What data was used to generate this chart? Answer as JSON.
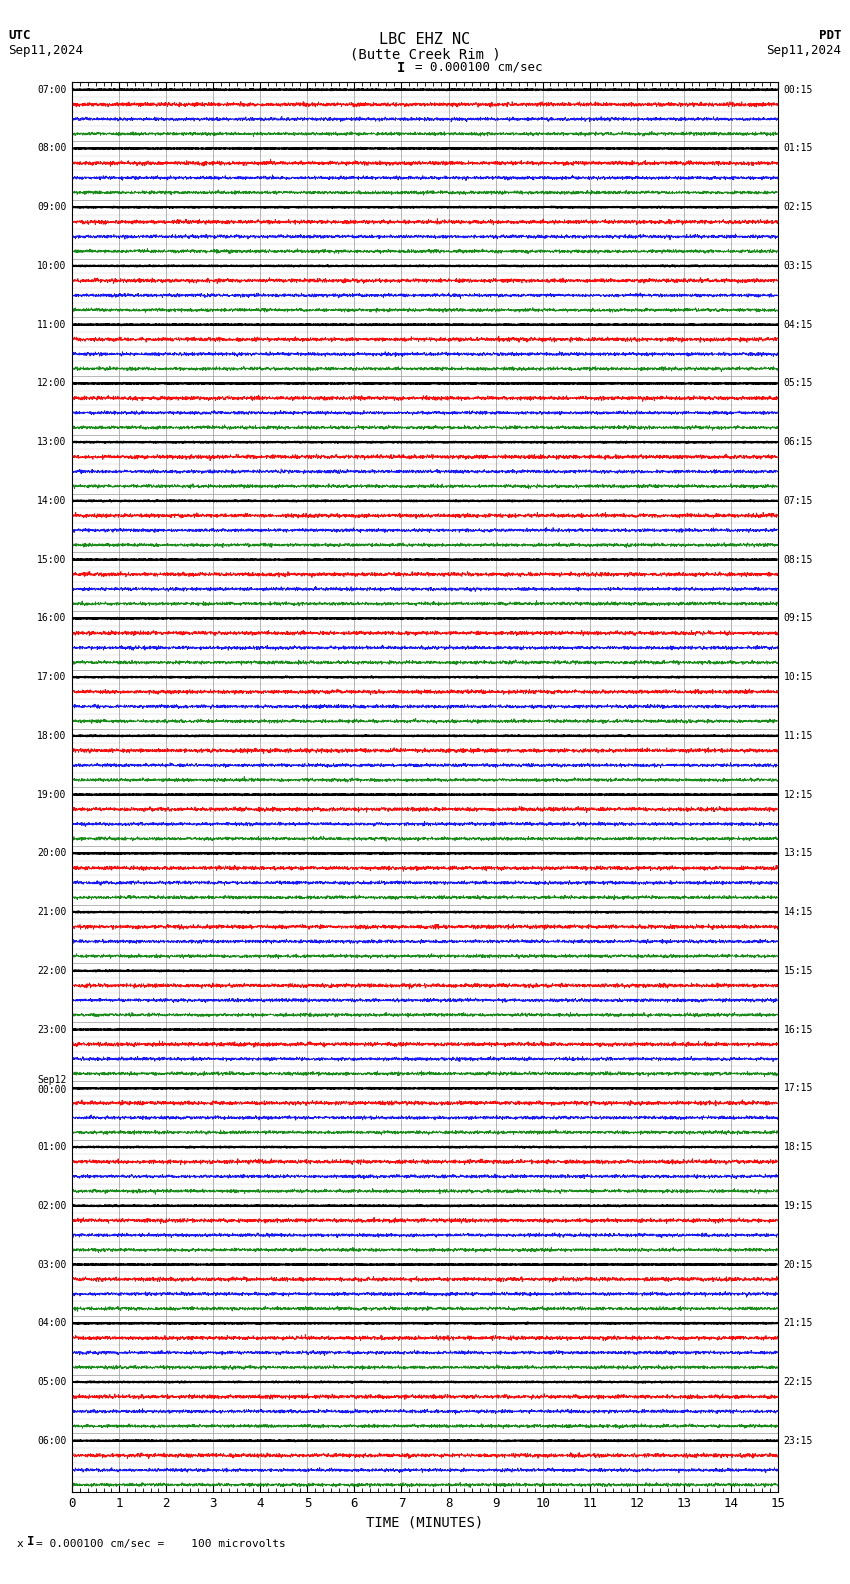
{
  "title_line1": "LBC EHZ NC",
  "title_line2": "(Butte Creek Rim )",
  "scale_label": "= 0.000100 cm/sec",
  "left_label_top": "UTC",
  "left_label_date": "Sep11,2024",
  "right_label_top": "PDT",
  "right_label_date": "Sep11,2024",
  "bottom_label": "TIME (MINUTES)",
  "footer_label": "= 0.000100 cm/sec =    100 microvolts",
  "xlabel_ticks": [
    0,
    1,
    2,
    3,
    4,
    5,
    6,
    7,
    8,
    9,
    10,
    11,
    12,
    13,
    14,
    15
  ],
  "utc_times": [
    "07:00",
    "08:00",
    "09:00",
    "10:00",
    "11:00",
    "12:00",
    "13:00",
    "14:00",
    "15:00",
    "16:00",
    "17:00",
    "18:00",
    "19:00",
    "20:00",
    "21:00",
    "22:00",
    "23:00",
    "Sep12\n00:00",
    "01:00",
    "02:00",
    "03:00",
    "04:00",
    "05:00",
    "06:00",
    "",
    "",
    "",
    "",
    "",
    "",
    "",
    "",
    "",
    "",
    "",
    "",
    "",
    "",
    "",
    "",
    "",
    "",
    "",
    "",
    "",
    "",
    "",
    ""
  ],
  "pdt_times": [
    "00:15",
    "01:15",
    "02:15",
    "03:15",
    "04:15",
    "05:15",
    "06:15",
    "07:15",
    "08:15",
    "09:15",
    "10:15",
    "11:15",
    "12:15",
    "13:15",
    "14:15",
    "15:15",
    "16:15",
    "17:15",
    "18:15",
    "19:15",
    "20:15",
    "21:15",
    "22:15",
    "23:15",
    "",
    "",
    "",
    "",
    "",
    "",
    "",
    "",
    "",
    "",
    "",
    "",
    "",
    "",
    "",
    "",
    "",
    "",
    "",
    "",
    "",
    "",
    "",
    ""
  ],
  "utc_major": [
    "07:00",
    "08:00",
    "09:00",
    "10:00",
    "11:00",
    "12:00",
    "13:00",
    "14:00",
    "15:00",
    "16:00",
    "17:00",
    "18:00",
    "19:00",
    "20:00",
    "21:00",
    "22:00",
    "23:00",
    "00:00",
    "01:00",
    "02:00",
    "03:00",
    "04:00",
    "05:00",
    "06:00"
  ],
  "sep12_row": 17,
  "pdt_major": [
    "00:15",
    "01:15",
    "02:15",
    "03:15",
    "04:15",
    "05:15",
    "06:15",
    "07:15",
    "08:15",
    "09:15",
    "10:15",
    "11:15",
    "12:15",
    "13:15",
    "14:15",
    "15:15",
    "16:15",
    "17:15",
    "18:15",
    "19:15",
    "20:15",
    "21:15",
    "22:15",
    "23:15"
  ],
  "n_rows": 24,
  "traces_per_row": 4,
  "colors": [
    "black",
    "red",
    "blue",
    "green"
  ],
  "background_color": "white",
  "grid_color": "#999999",
  "x_min": 0,
  "x_max": 15,
  "n_points": 3000
}
